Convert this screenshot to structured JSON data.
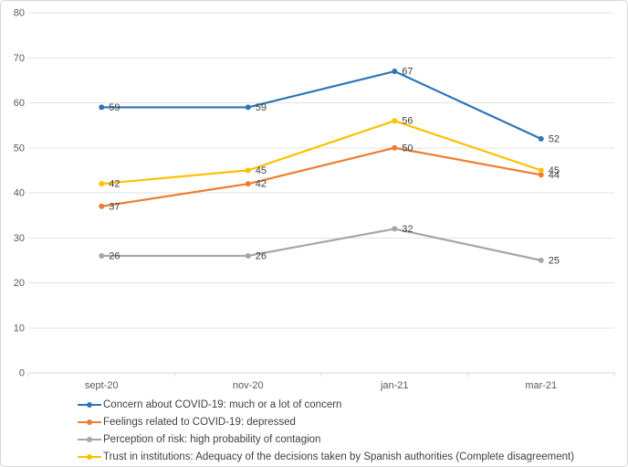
{
  "chart_data": {
    "type": "line",
    "categories": [
      "sept-20",
      "nov-20",
      "jan-21",
      "mar-21"
    ],
    "series": [
      {
        "name": "Concern about COVID-19: much or a lot of concern",
        "color": "#2E75B6",
        "values": [
          59,
          59,
          67,
          52
        ]
      },
      {
        "name": "Feelings related to COVID-19: depressed",
        "color": "#ED7D31",
        "values": [
          37,
          42,
          50,
          44
        ]
      },
      {
        "name": "Perception of risk: high probability of contagion",
        "color": "#A6A6A6",
        "values": [
          26,
          26,
          32,
          25
        ]
      },
      {
        "name": "Trust in institutions: Adequacy of the decisions taken by Spanish authorities (Complete disagreement)",
        "color": "#FFC000",
        "values": [
          42,
          45,
          56,
          45
        ]
      }
    ],
    "ylim": [
      0,
      80
    ],
    "ytick_step": 10,
    "y_tick_labels": [
      "0",
      "10",
      "20",
      "30",
      "40",
      "50",
      "60",
      "70",
      "80"
    ],
    "grid": true,
    "data_labels": true,
    "legend_position": "bottom-left"
  },
  "colors": {
    "grid_line": "#e3e3e3",
    "axis_line": "#d9d9d9",
    "tick_label": "#595959",
    "data_label": "#404040",
    "background": "#ffffff",
    "border": "#d6d6d6"
  }
}
